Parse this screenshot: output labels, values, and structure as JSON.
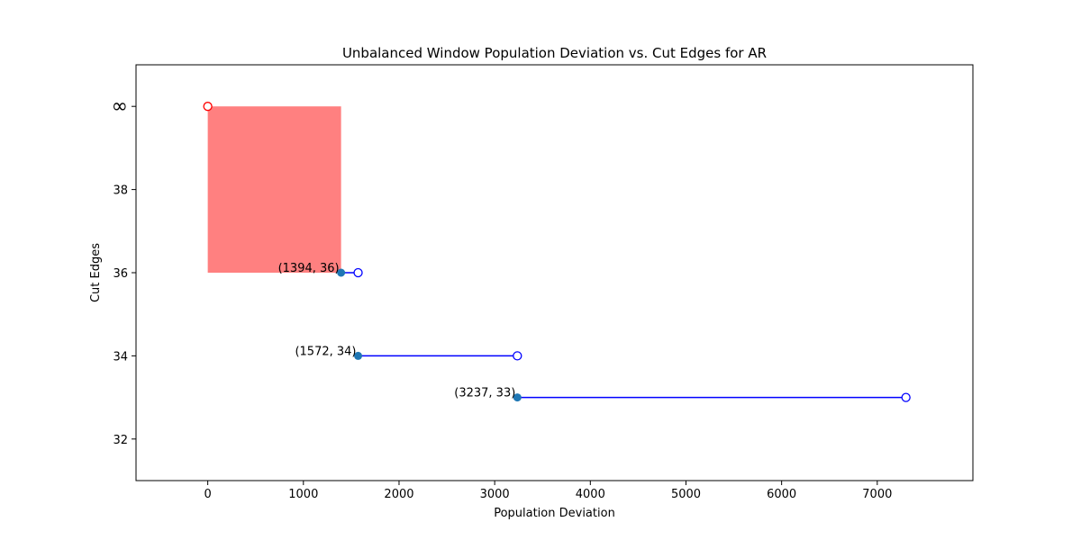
{
  "chart_data": {
    "type": "scatter",
    "title": "Unbalanced Window Population Deviation vs. Cut Edges for AR",
    "xlabel": "Population Deviation",
    "ylabel": "Cut Edges",
    "xlim": [
      -750,
      8000
    ],
    "ylim": [
      31,
      41
    ],
    "x_ticks": [
      0,
      1000,
      2000,
      3000,
      4000,
      5000,
      6000,
      7000
    ],
    "y_ticks": [
      32,
      34,
      36,
      38,
      40
    ],
    "y_tick_labels": [
      "32",
      "34",
      "36",
      "38",
      "∞"
    ],
    "infinity_y": 40,
    "colors": {
      "segment": "#0000ff",
      "filled_point": "#1f77b4",
      "open_point": "#0000ff",
      "infinity_point": "#ff0000",
      "region_fill": "#ff8080"
    },
    "infinity_point": {
      "x": 0,
      "y": 40
    },
    "shaded_region": {
      "x0": 0,
      "x1": 1394,
      "y0": 36,
      "y1": 40
    },
    "segments": [
      {
        "x_start": 1394,
        "x_end": 1572,
        "y": 36,
        "label": "(1394, 36)"
      },
      {
        "x_start": 1572,
        "x_end": 3237,
        "y": 34,
        "label": "(1572, 34)"
      },
      {
        "x_start": 3237,
        "x_end": 7300,
        "y": 33,
        "label": "(3237, 33)"
      }
    ]
  }
}
